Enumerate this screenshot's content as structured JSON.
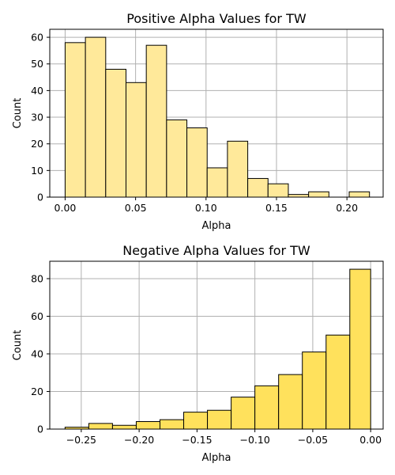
{
  "chart_data": [
    {
      "type": "bar",
      "title": "Positive Alpha Values for TW",
      "xlabel": "Alpha",
      "ylabel": "Count",
      "bar_color": "#ffe99a",
      "xlim": [
        -0.0109,
        0.2257
      ],
      "ylim": [
        0,
        63
      ],
      "grid": true,
      "xticks": [
        0.0,
        0.05,
        0.1,
        0.15,
        0.2
      ],
      "xtick_labels": [
        "0.00",
        "0.05",
        "0.10",
        "0.15",
        "0.20"
      ],
      "yticks": [
        0,
        10,
        20,
        30,
        40,
        50,
        60
      ],
      "ytick_labels": [
        "0",
        "10",
        "20",
        "30",
        "40",
        "50",
        "60"
      ],
      "bins": [
        {
          "x0": 0.0,
          "x1": 0.0144,
          "count": 58
        },
        {
          "x0": 0.0144,
          "x1": 0.0288,
          "count": 60
        },
        {
          "x0": 0.0288,
          "x1": 0.0432,
          "count": 48
        },
        {
          "x0": 0.0432,
          "x1": 0.0576,
          "count": 43
        },
        {
          "x0": 0.0576,
          "x1": 0.072,
          "count": 57
        },
        {
          "x0": 0.072,
          "x1": 0.0864,
          "count": 29
        },
        {
          "x0": 0.0864,
          "x1": 0.1008,
          "count": 26
        },
        {
          "x0": 0.1008,
          "x1": 0.1152,
          "count": 11
        },
        {
          "x0": 0.1152,
          "x1": 0.1296,
          "count": 21
        },
        {
          "x0": 0.1296,
          "x1": 0.144,
          "count": 7
        },
        {
          "x0": 0.144,
          "x1": 0.1584,
          "count": 5
        },
        {
          "x0": 0.1584,
          "x1": 0.1728,
          "count": 1
        },
        {
          "x0": 0.1728,
          "x1": 0.1872,
          "count": 2
        },
        {
          "x0": 0.1872,
          "x1": 0.2016,
          "count": 0
        },
        {
          "x0": 0.2016,
          "x1": 0.216,
          "count": 2
        }
      ]
    },
    {
      "type": "bar",
      "title": "Negative Alpha Values for TW",
      "xlabel": "Alpha",
      "ylabel": "Count",
      "bar_color": "#ffe15c",
      "xlim": [
        -0.2772,
        0.0108
      ],
      "ylim": [
        0,
        89.25
      ],
      "grid": true,
      "xticks": [
        -0.25,
        -0.2,
        -0.15,
        -0.1,
        -0.05,
        0.0
      ],
      "xtick_labels": [
        "−0.25",
        "−0.20",
        "−0.15",
        "−0.10",
        "−0.05",
        "0.00"
      ],
      "yticks": [
        0,
        20,
        40,
        60,
        80
      ],
      "ytick_labels": [
        "0",
        "20",
        "40",
        "60",
        "80"
      ],
      "bins": [
        {
          "x0": -0.264,
          "x1": -0.2435,
          "count": 1
        },
        {
          "x0": -0.2435,
          "x1": -0.223,
          "count": 3
        },
        {
          "x0": -0.223,
          "x1": -0.2025,
          "count": 2
        },
        {
          "x0": -0.2025,
          "x1": -0.182,
          "count": 4
        },
        {
          "x0": -0.182,
          "x1": -0.1615,
          "count": 5
        },
        {
          "x0": -0.1615,
          "x1": -0.141,
          "count": 9
        },
        {
          "x0": -0.141,
          "x1": -0.1205,
          "count": 10
        },
        {
          "x0": -0.1205,
          "x1": -0.1,
          "count": 17
        },
        {
          "x0": -0.1,
          "x1": -0.0795,
          "count": 23
        },
        {
          "x0": -0.0795,
          "x1": -0.059,
          "count": 29
        },
        {
          "x0": -0.059,
          "x1": -0.0385,
          "count": 41
        },
        {
          "x0": -0.0385,
          "x1": -0.018,
          "count": 50
        },
        {
          "x0": -0.018,
          "x1": 0.0,
          "count": 85
        }
      ]
    }
  ]
}
